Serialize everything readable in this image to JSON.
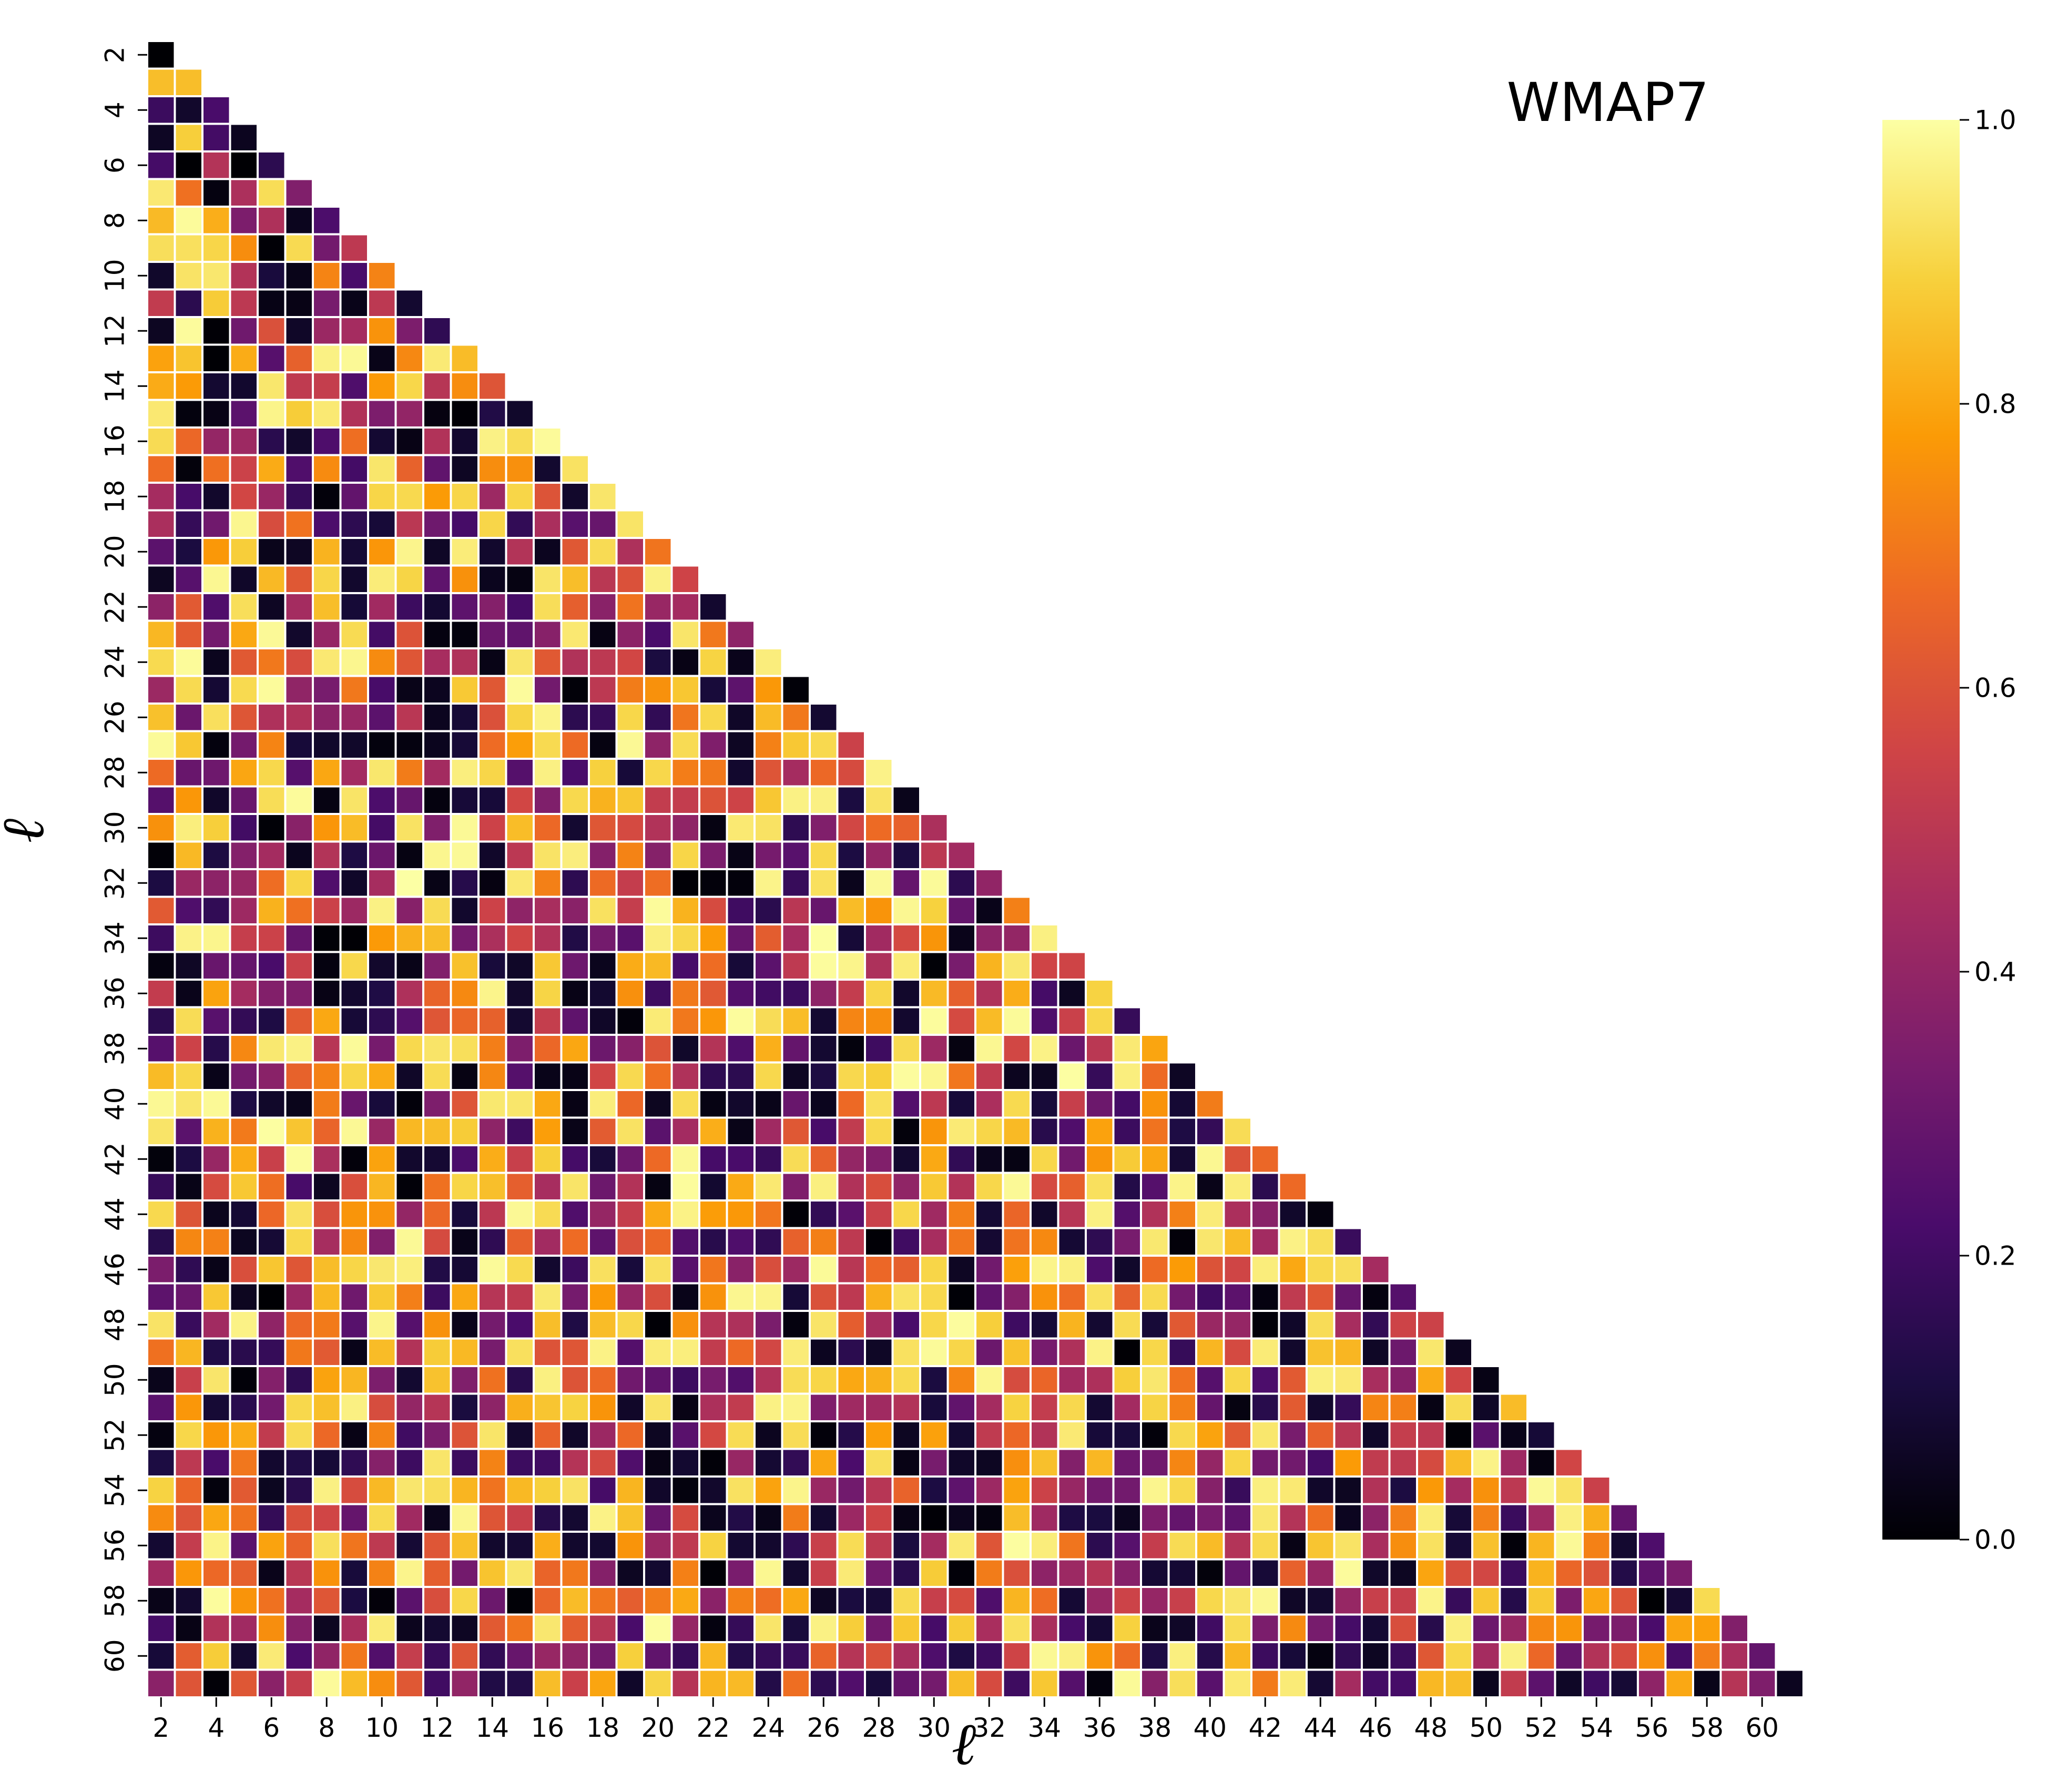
{
  "chart_data": {
    "type": "heatmap",
    "layout": "lower-triangular",
    "title": "WMAP7",
    "xlabel": "ℓ",
    "ylabel": "ℓ",
    "x_range": [
      2,
      61
    ],
    "y_range": [
      2,
      61
    ],
    "x_tick_labels": [
      "2",
      "4",
      "6",
      "8",
      "10",
      "12",
      "14",
      "16",
      "18",
      "20",
      "22",
      "24",
      "26",
      "28",
      "30",
      "32",
      "34",
      "36",
      "38",
      "40",
      "42",
      "44",
      "46",
      "48",
      "50",
      "52",
      "54",
      "56",
      "58",
      "60"
    ],
    "y_tick_labels": [
      "2",
      "4",
      "6",
      "8",
      "10",
      "12",
      "14",
      "16",
      "18",
      "20",
      "22",
      "24",
      "26",
      "28",
      "30",
      "32",
      "34",
      "36",
      "38",
      "40",
      "42",
      "44",
      "46",
      "48",
      "50",
      "52",
      "54",
      "56",
      "58",
      "60"
    ],
    "colormap": "inferno",
    "colormap_stops": [
      "#000004",
      "#1b0c41",
      "#4a0c6b",
      "#781c6d",
      "#a52c60",
      "#cf4446",
      "#ed6925",
      "#fb9b06",
      "#f7d13d",
      "#fcffa4"
    ],
    "value_range": [
      0.0,
      1.0
    ],
    "colorbar_ticks": [
      "0.0",
      "0.2",
      "0.4",
      "0.6",
      "0.8",
      "1.0"
    ],
    "values_note": "Per-cell values are estimates; cells form a lower triangle (row ℓ has columns 2..ℓ).",
    "sample_values": [
      {
        "l1": 2,
        "l2": 2,
        "value": 0.0
      },
      {
        "l1": 3,
        "l2": 2,
        "value": 0.85
      },
      {
        "l1": 3,
        "l2": 3,
        "value": 0.85
      },
      {
        "l1": 5,
        "l2": 5,
        "value": 0.05
      },
      {
        "l1": 6,
        "l2": 5,
        "value": 0.0
      },
      {
        "l1": 61,
        "l2": 61,
        "value": 0.05
      }
    ]
  }
}
